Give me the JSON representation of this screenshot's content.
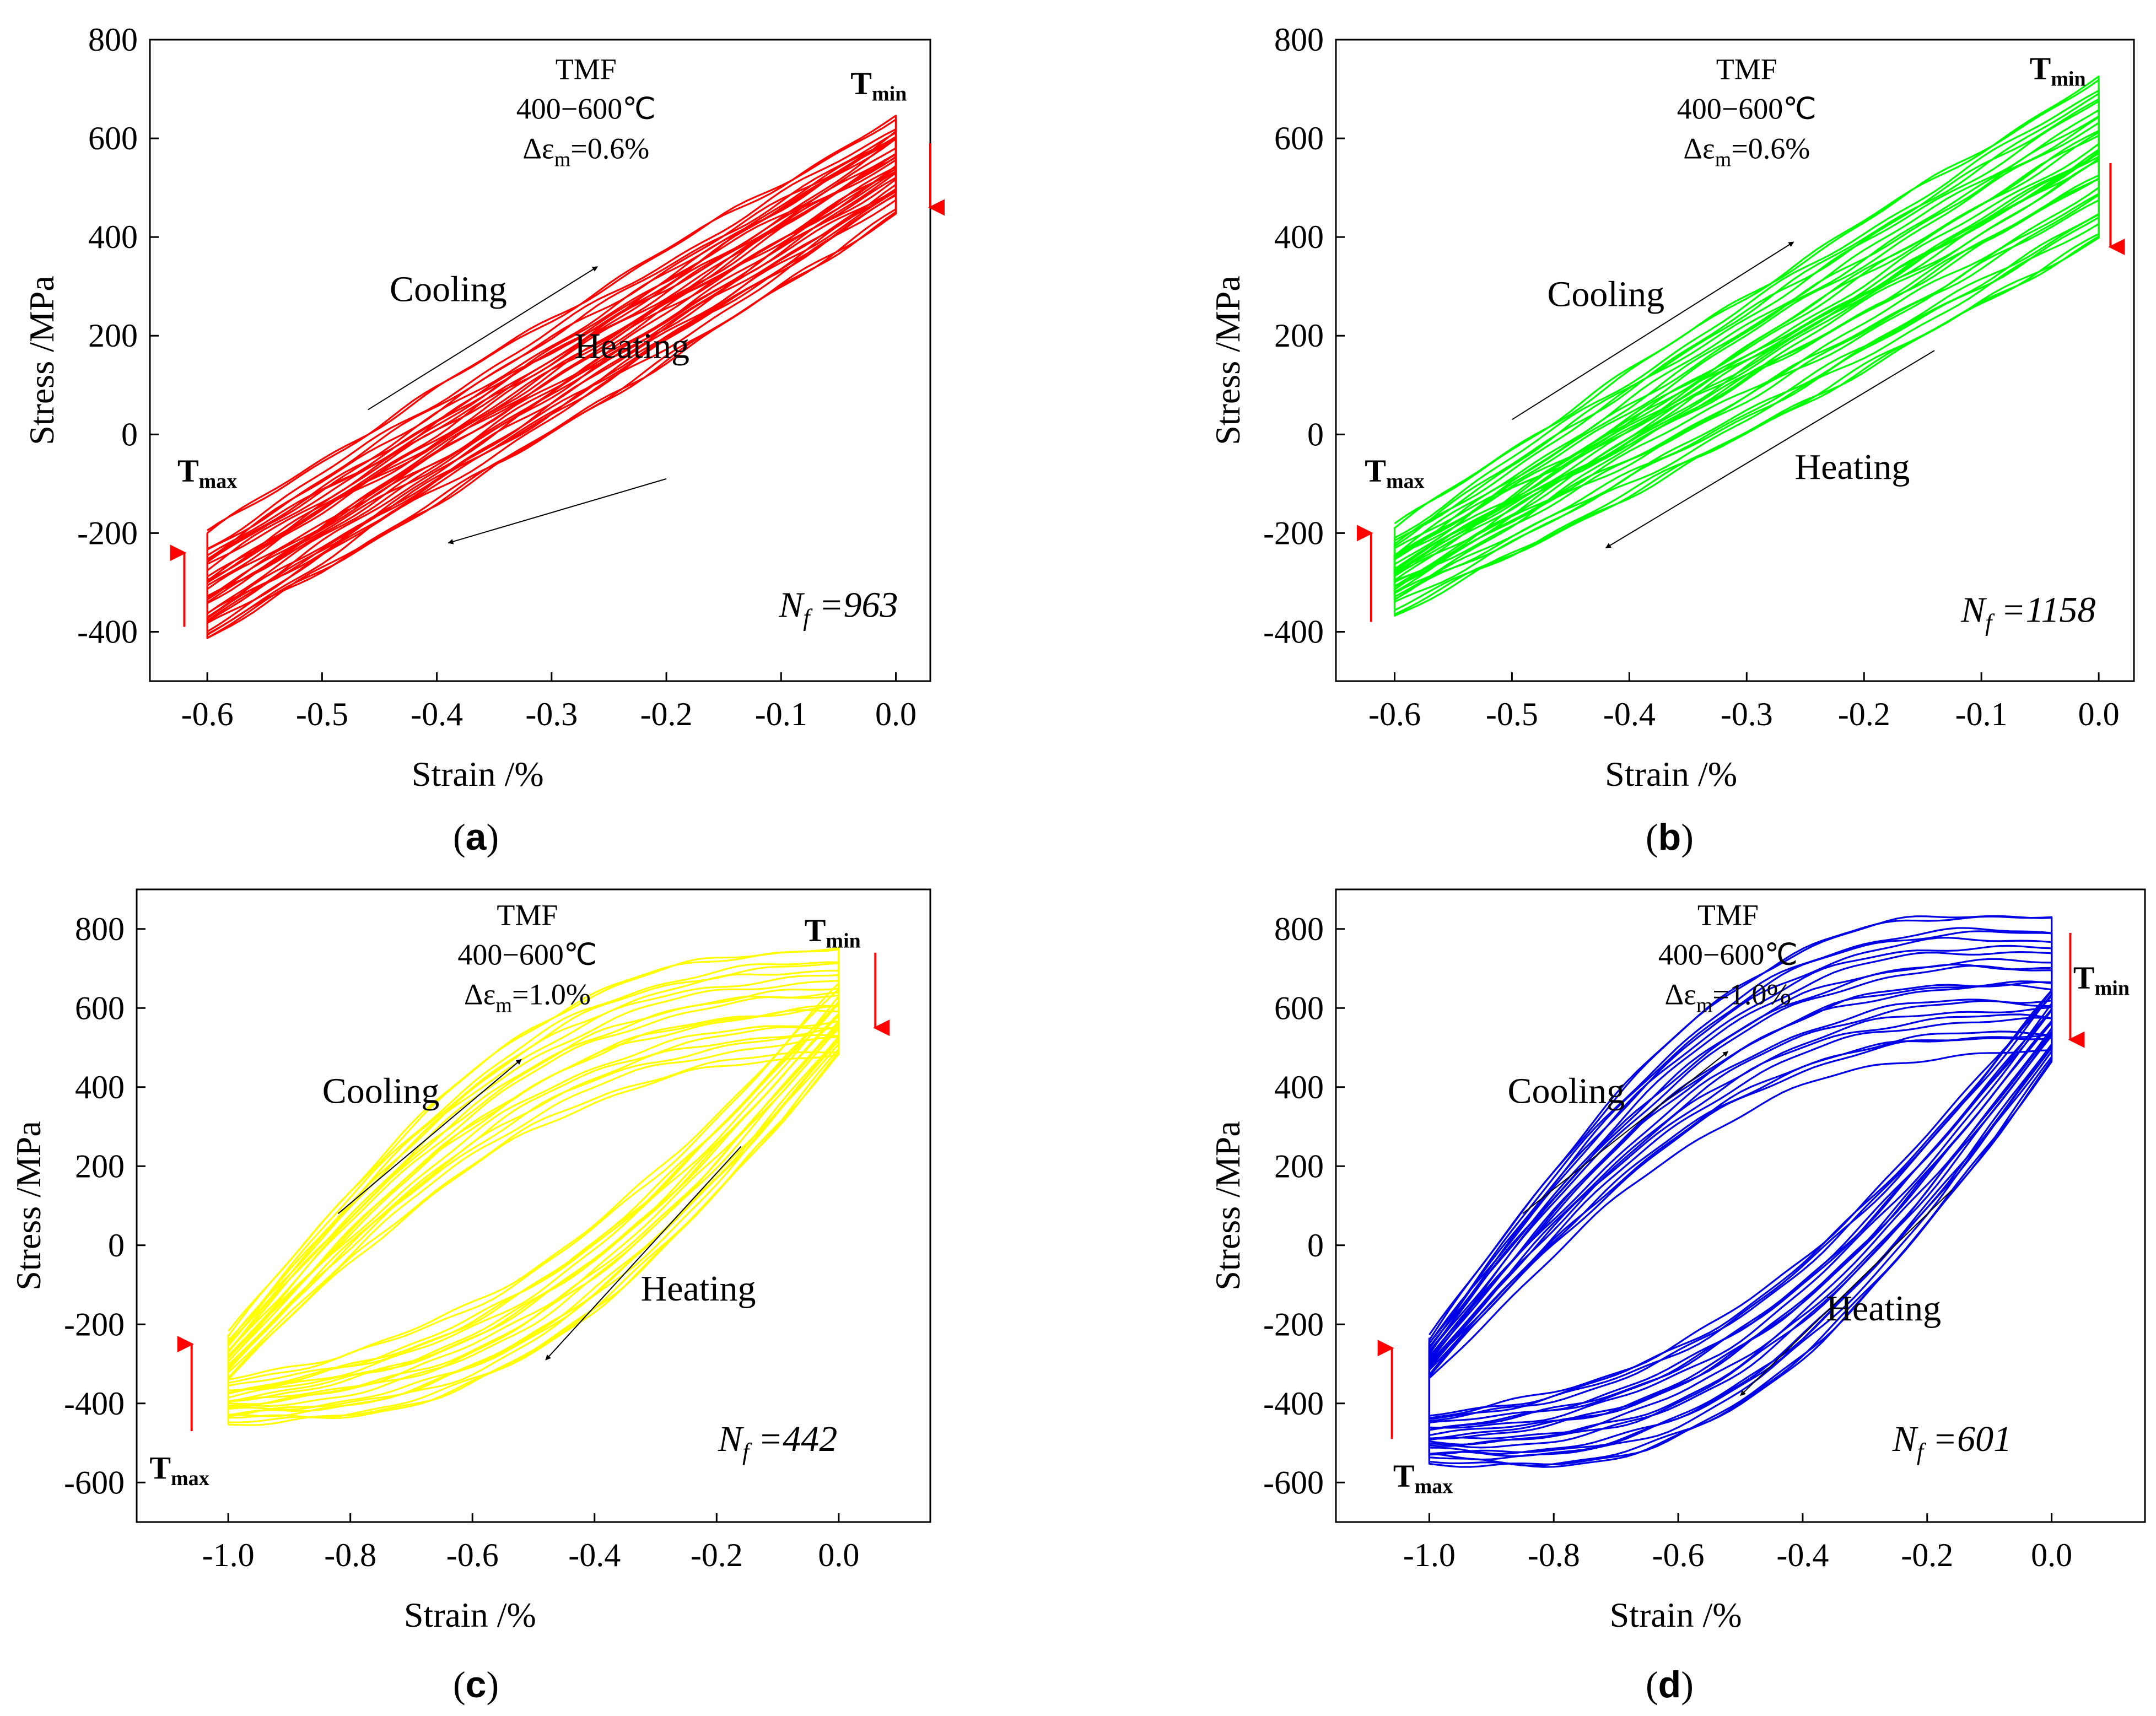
{
  "figure": {
    "panels": [
      {
        "caption": "(a)",
        "letter": "a"
      },
      {
        "caption": "(b)",
        "letter": "b"
      },
      {
        "caption": "(c)",
        "letter": "c"
      },
      {
        "caption": "(d)",
        "letter": "d"
      }
    ]
  },
  "chart_data": [
    {
      "type": "line",
      "panel": "a",
      "xlabel": "Strain /%",
      "ylabel": "Stress /MPa",
      "xlim": [
        -0.65,
        0.03
      ],
      "ylim": [
        -500,
        800
      ],
      "xticks": [
        -0.6,
        -0.5,
        -0.4,
        -0.3,
        -0.2,
        -0.1,
        0.0
      ],
      "xtick_labels": [
        "-0.6",
        "-0.5",
        "-0.4",
        "-0.3",
        "-0.2",
        "-0.1",
        "0.0"
      ],
      "yticks": [
        -400,
        -200,
        0,
        200,
        400,
        600,
        800
      ],
      "ytick_labels": [
        "-400",
        "-200",
        "0",
        "200",
        "400",
        "600",
        "800"
      ],
      "color": "#ff0000",
      "annotation": {
        "title": "TMF",
        "temp": "400−600℃",
        "strain_prefix": "Δε",
        "strain_sub": "m",
        "strain_value": "=0.6%"
      },
      "labels": {
        "cooling": "Cooling",
        "heating": "Heating",
        "tmin": "T",
        "tmin_sub": "min",
        "tmax": "T",
        "tmax_sub": "max"
      },
      "nf": {
        "prefix": "N",
        "sub": "f",
        "value": " =963"
      },
      "loops": {
        "count": 18,
        "max_upper": [
          640,
          480
        ],
        "max_lower": [
          -200,
          -410
        ],
        "min_upper": [
          440,
          620
        ],
        "min_lower": [
          -420,
          -240
        ],
        "curvature": 0.15
      },
      "arrows": {
        "cooling": [
          [
            -0.46,
            50
          ],
          [
            -0.26,
            340
          ]
        ],
        "heating": [
          [
            -0.2,
            -90
          ],
          [
            -0.39,
            -220
          ]
        ]
      },
      "label_pos": {
        "cooling": [
          -0.39,
          270
        ],
        "heating": [
          -0.23,
          155
        ],
        "tmin": [
          -0.015,
          690
        ],
        "tmax": [
          -0.6,
          -95
        ],
        "nf": [
          -0.05,
          -370
        ],
        "tmf": [
          -0.27,
          720
        ]
      },
      "red_arrows": {
        "left": [
          -0.62,
          -390,
          -240
        ],
        "right": [
          0.03,
          590,
          460
        ]
      }
    },
    {
      "type": "line",
      "panel": "b",
      "xlabel": "Strain /%",
      "ylabel": "Stress /MPa",
      "xlim": [
        -0.65,
        0.03
      ],
      "ylim": [
        -500,
        800
      ],
      "xticks": [
        -0.6,
        -0.5,
        -0.4,
        -0.3,
        -0.2,
        -0.1,
        0.0
      ],
      "xtick_labels": [
        "-0.6",
        "-0.5",
        "-0.4",
        "-0.3",
        "-0.2",
        "-0.1",
        "0.0"
      ],
      "yticks": [
        -400,
        -200,
        0,
        200,
        400,
        600,
        800
      ],
      "ytick_labels": [
        "-400",
        "-200",
        "0",
        "200",
        "400",
        "600",
        "800"
      ],
      "color": "#00ff00",
      "annotation": {
        "title": "TMF",
        "temp": "400−600℃",
        "strain_prefix": "Δε",
        "strain_sub": "m",
        "strain_value": "=0.6%"
      },
      "labels": {
        "cooling": "Cooling",
        "heating": "Heating",
        "tmin": "T",
        "tmin_sub": "min",
        "tmax": "T",
        "tmax_sub": "max"
      },
      "nf": {
        "prefix": "N",
        "sub": "f",
        "value": " =1158"
      },
      "loops": {
        "count": 18,
        "max_upper": [
          720,
          550
        ],
        "max_lower": [
          -190,
          -330
        ],
        "min_upper": [
          390,
          580
        ],
        "min_lower": [
          -370,
          -230
        ],
        "curvature": 0.15
      },
      "arrows": {
        "cooling": [
          [
            -0.5,
            30
          ],
          [
            -0.26,
            390
          ]
        ],
        "heating": [
          [
            -0.14,
            170
          ],
          [
            -0.42,
            -230
          ]
        ]
      },
      "label_pos": {
        "cooling": [
          -0.42,
          260
        ],
        "heating": [
          -0.21,
          -90
        ],
        "tmin": [
          -0.035,
          720
        ],
        "tmax": [
          -0.6,
          -95
        ],
        "nf": [
          -0.06,
          -380
        ],
        "tmf": [
          -0.3,
          720
        ]
      },
      "red_arrows": {
        "left": [
          -0.62,
          -380,
          -200
        ],
        "right": [
          0.01,
          550,
          380
        ]
      }
    },
    {
      "type": "line",
      "panel": "c",
      "xlabel": "Strain /%",
      "ylabel": "Stress /MPa",
      "xlim": [
        -1.15,
        0.15
      ],
      "ylim": [
        -700,
        900
      ],
      "xticks": [
        -1.0,
        -0.8,
        -0.6,
        -0.4,
        -0.2,
        0.0
      ],
      "xtick_labels": [
        "-1.0",
        "-0.8",
        "-0.6",
        "-0.4",
        "-0.2",
        "0.0"
      ],
      "yticks": [
        -600,
        -400,
        -200,
        0,
        200,
        400,
        600,
        800
      ],
      "ytick_labels": [
        "-600",
        "-400",
        "-200",
        "0",
        "200",
        "400",
        "600",
        "800"
      ],
      "color": "#ffff00",
      "annotation": {
        "title": "TMF",
        "temp": "400−600℃",
        "strain_prefix": "Δε",
        "strain_sub": "m",
        "strain_value": "=1.0%"
      },
      "labels": {
        "cooling": "Cooling",
        "heating": "Heating",
        "tmin": "T",
        "tmin_sub": "min",
        "tmax": "T",
        "tmax_sub": "max"
      },
      "nf": {
        "prefix": "N",
        "sub": "f",
        "value": " =442"
      },
      "loops": {
        "count": 20,
        "max_upper": [
          750,
          490
        ],
        "max_lower": [
          -230,
          -330
        ],
        "min_upper": [
          480,
          650
        ],
        "min_lower": [
          -450,
          -350
        ],
        "curvature": 0.95
      },
      "arrows": {
        "cooling": [
          [
            -0.82,
            80
          ],
          [
            -0.52,
            470
          ]
        ],
        "heating": [
          [
            -0.16,
            250
          ],
          [
            -0.48,
            -290
          ]
        ]
      },
      "label_pos": {
        "cooling": [
          -0.75,
          360
        ],
        "heating": [
          -0.23,
          -140
        ],
        "tmin": [
          -0.01,
          770
        ],
        "tmax": [
          -1.08,
          -590
        ],
        "nf": [
          -0.1,
          -520
        ],
        "tmf": [
          -0.51,
          810
        ]
      },
      "red_arrows": {
        "left": [
          -1.06,
          -470,
          -250
        ],
        "right": [
          0.06,
          740,
          550
        ]
      }
    },
    {
      "type": "line",
      "panel": "d",
      "xlabel": "Strain /%",
      "ylabel": "Stress /MPa",
      "xlim": [
        -1.15,
        0.15
      ],
      "ylim": [
        -700,
        900
      ],
      "xticks": [
        -1.0,
        -0.8,
        -0.6,
        -0.4,
        -0.2,
        0.0
      ],
      "xtick_labels": [
        "-1.0",
        "-0.8",
        "-0.6",
        "-0.4",
        "-0.2",
        "0.0"
      ],
      "yticks": [
        -600,
        -400,
        -200,
        0,
        200,
        400,
        600,
        800
      ],
      "ytick_labels": [
        "-600",
        "-400",
        "-200",
        "0",
        "200",
        "400",
        "600",
        "800"
      ],
      "color": "#0000e6",
      "annotation": {
        "title": "TMF",
        "temp": "400−600℃",
        "strain_prefix": "Δε",
        "strain_sub": "m",
        "strain_value": "=1.0%"
      },
      "labels": {
        "cooling": "Cooling",
        "heating": "Heating",
        "tmin": "T",
        "tmin_sub": "min",
        "tmax": "T",
        "tmax_sub": "max"
      },
      "nf": {
        "prefix": "N",
        "sub": "f",
        "value": " =601"
      },
      "loops": {
        "count": 22,
        "max_upper": [
          830,
          500
        ],
        "max_lower": [
          -240,
          -330
        ],
        "min_upper": [
          460,
          650
        ],
        "min_lower": [
          -550,
          -430
        ],
        "curvature": 1.05
      },
      "arrows": {
        "cooling": [
          [
            -0.85,
            80
          ],
          [
            -0.52,
            490
          ]
        ],
        "heating": [
          [
            -0.16,
            140
          ],
          [
            -0.5,
            -380
          ]
        ]
      },
      "label_pos": {
        "cooling": [
          -0.78,
          360
        ],
        "heating": [
          -0.27,
          -190
        ],
        "tmin": [
          0.08,
          650
        ],
        "tmax": [
          -1.01,
          -610
        ],
        "nf": [
          -0.16,
          -520
        ],
        "tmf": [
          -0.52,
          810
        ]
      },
      "red_arrows": {
        "left": [
          -1.06,
          -490,
          -260
        ],
        "right": [
          0.03,
          790,
          520
        ]
      }
    }
  ]
}
